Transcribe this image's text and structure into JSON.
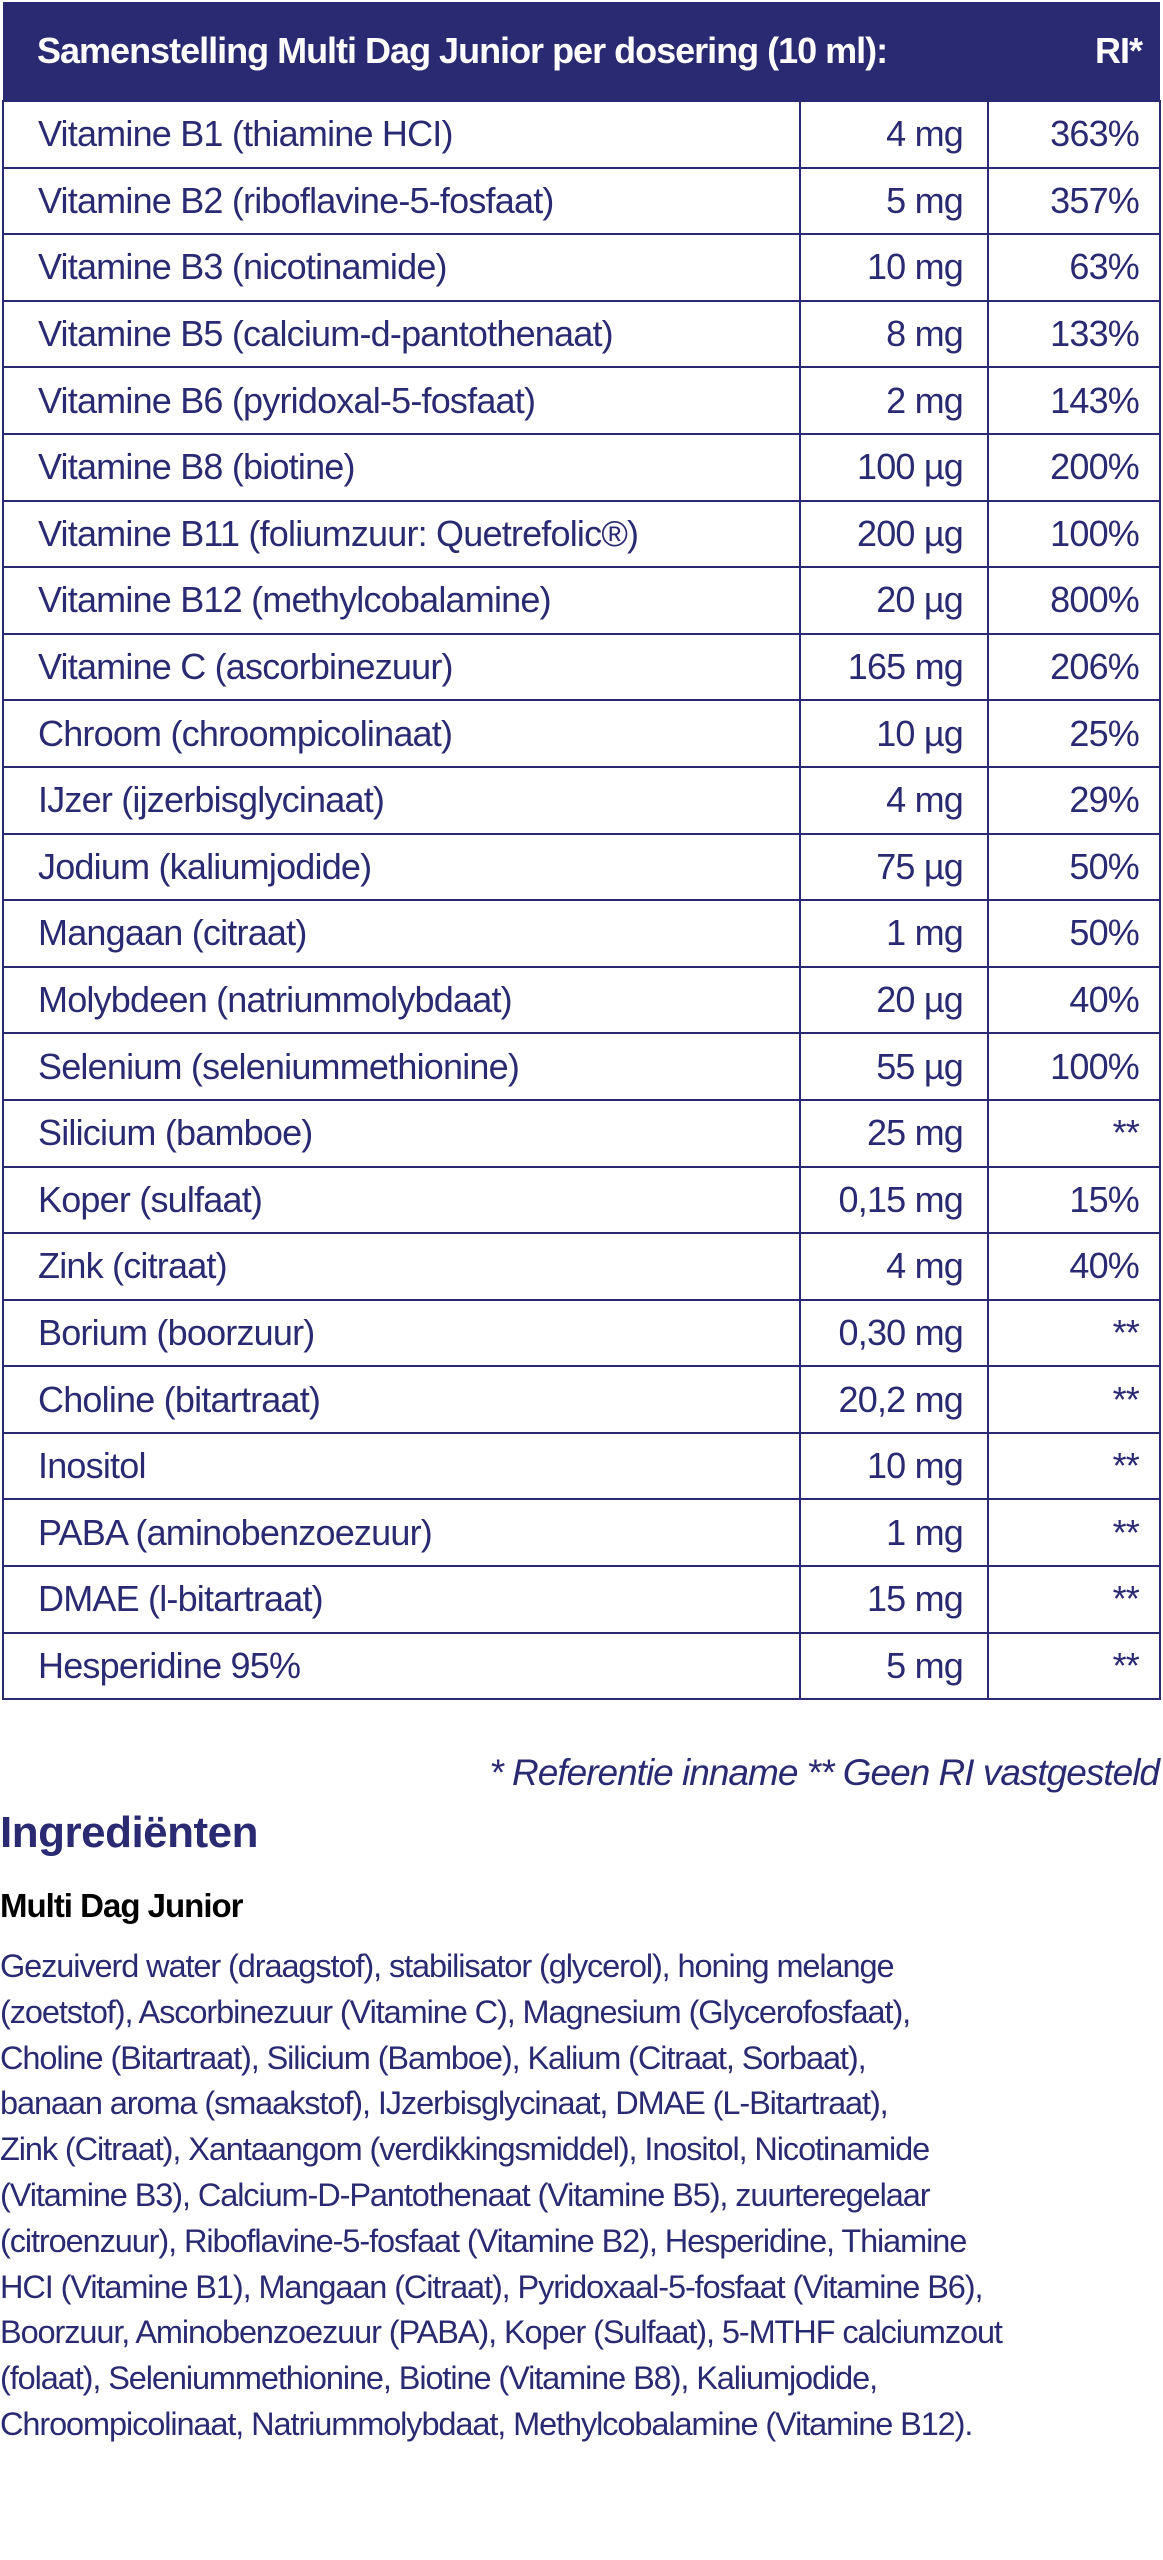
{
  "table": {
    "header": {
      "title": "Samenstelling Multi Dag Junior per dosering (10 ml):",
      "ri": "RI*"
    },
    "rows": [
      {
        "name": "Vitamine B1 (thiamine HCI)",
        "amount": "4 mg",
        "ri": "363%"
      },
      {
        "name": "Vitamine B2 (riboflavine-5-fosfaat)",
        "amount": "5 mg",
        "ri": "357%"
      },
      {
        "name": "Vitamine B3 (nicotinamide)",
        "amount": "10 mg",
        "ri": "63%"
      },
      {
        "name": "Vitamine B5 (calcium-d-pantothenaat)",
        "amount": "8 mg",
        "ri": "133%"
      },
      {
        "name": "Vitamine B6 (pyridoxal-5-fosfaat)",
        "amount": "2 mg",
        "ri": "143%"
      },
      {
        "name": "Vitamine B8 (biotine)",
        "amount": "100 µg",
        "ri": "200%"
      },
      {
        "name": "Vitamine B11 (foliumzuur: Quetrefolic®)",
        "amount": "200 µg",
        "ri": "100%"
      },
      {
        "name": "Vitamine B12 (methylcobalamine)",
        "amount": "20 µg",
        "ri": "800%"
      },
      {
        "name": "Vitamine C (ascorbinezuur)",
        "amount": "165 mg",
        "ri": "206%"
      },
      {
        "name": "Chroom (chroompicolinaat)",
        "amount": "10 µg",
        "ri": "25%"
      },
      {
        "name": "IJzer (ijzerbisglycinaat)",
        "amount": "4 mg",
        "ri": "29%"
      },
      {
        "name": "Jodium (kaliumjodide)",
        "amount": "75 µg",
        "ri": "50%"
      },
      {
        "name": "Mangaan (citraat)",
        "amount": "1 mg",
        "ri": "50%"
      },
      {
        "name": "Molybdeen (natriummolybdaat)",
        "amount": "20 µg",
        "ri": "40%"
      },
      {
        "name": "Selenium (seleniummethionine)",
        "amount": "55 µg",
        "ri": "100%"
      },
      {
        "name": "Silicium (bamboe)",
        "amount": "25 mg",
        "ri": "**"
      },
      {
        "name": "Koper (sulfaat)",
        "amount": "0,15 mg",
        "ri": "15%"
      },
      {
        "name": "Zink (citraat)",
        "amount": "4 mg",
        "ri": "40%"
      },
      {
        "name": "Borium (boorzuur)",
        "amount": "0,30 mg",
        "ri": "**"
      },
      {
        "name": "Choline (bitartraat)",
        "amount": "20,2 mg",
        "ri": "**"
      },
      {
        "name": "Inositol",
        "amount": "10 mg",
        "ri": "**"
      },
      {
        "name": "PABA (aminobenzoezuur)",
        "amount": "1 mg",
        "ri": "**"
      },
      {
        "name": "DMAE (l-bitartraat)",
        "amount": "15 mg",
        "ri": "**"
      },
      {
        "name": "Hesperidine 95%",
        "amount": "5 mg",
        "ri": "**"
      }
    ]
  },
  "footnote": "* Referentie inname  ** Geen RI vastgesteld",
  "ingredients": {
    "heading": "Ingrediënten",
    "product": "Multi Dag Junior",
    "lines": [
      "Gezuiverd water (draagstof), stabilisator (glycerol), honing melange",
      "(zoetstof), Ascorbinezuur (Vitamine C), Magnesium (Glycerofosfaat),",
      "Choline (Bitartraat), Silicium (Bamboe), Kalium (Citraat, Sorbaat),",
      "banaan aroma (smaakstof), IJzerbisglycinaat, DMAE (L-Bitartraat),",
      "Zink (Citraat), Xantaangom (verdikkingsmiddel), Inositol, Nicotinamide",
      "(Vitamine B3), Calcium-D-Pantothenaat (Vitamine B5), zuurteregelaar",
      "(citroenzuur), Riboflavine-5-fosfaat (Vitamine B2), Hesperidine, Thiamine",
      "HCI (Vitamine B1), Mangaan (Citraat), Pyridoxaal-5-fosfaat (Vitamine B6),",
      "Boorzuur, Aminobenzoezuur (PABA), Koper (Sulfaat), 5-MTHF calciumzout",
      "(folaat), Seleniummethionine, Biotine (Vitamine B8), Kaliumjodide,",
      "Chroompicolinaat, Natriummolybdaat, Methylcobalamine (Vitamine B12)."
    ]
  },
  "colors": {
    "navy": "#2a2a72",
    "text_black": "#000000"
  }
}
